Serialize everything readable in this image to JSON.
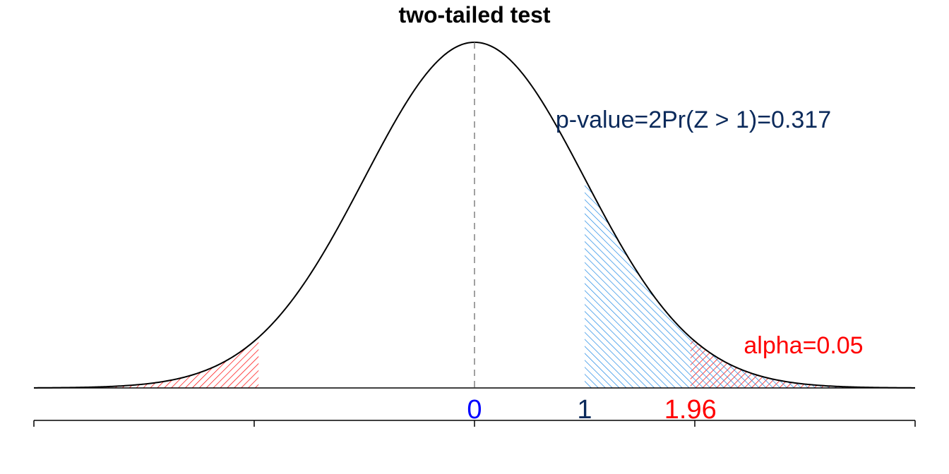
{
  "chart_data": {
    "type": "area",
    "title": "two-tailed test",
    "xlabel": "",
    "ylabel": "",
    "xlim": [
      -4,
      4
    ],
    "ylim": [
      0,
      0.3989
    ],
    "curve": {
      "name": "",
      "distribution": "standard normal",
      "color": "#000000"
    },
    "center_line": {
      "x": 0,
      "style": "dashed",
      "color": "#808080"
    },
    "shaded_regions": [
      {
        "name": "alpha-left",
        "from": -4,
        "to": -1.96,
        "color": "#FF0000",
        "hatch": "diagonal"
      },
      {
        "name": "alpha-right",
        "from": 1.96,
        "to": 4,
        "color": "#FF0000",
        "hatch": "diagonal"
      },
      {
        "name": "p-value-right",
        "from": 1,
        "to": 4,
        "color": "#1E88E5",
        "hatch": "diagonal"
      }
    ],
    "x_tick_values": [
      -4,
      -2,
      0,
      2,
      4
    ],
    "value_labels": [
      {
        "x": 0,
        "text": "0",
        "color": "#0000FF"
      },
      {
        "x": 1,
        "text": "1",
        "color": "#0B2A5B"
      },
      {
        "x": 1.96,
        "text": "1.96",
        "color": "#FF0000"
      }
    ],
    "annotations": [
      {
        "text": "p-value=2Pr(Z > 1)=0.317",
        "color": "#0B2A5B"
      },
      {
        "text": "alpha=0.05",
        "color": "#FF0000"
      }
    ],
    "grid": false,
    "legend": "none"
  }
}
